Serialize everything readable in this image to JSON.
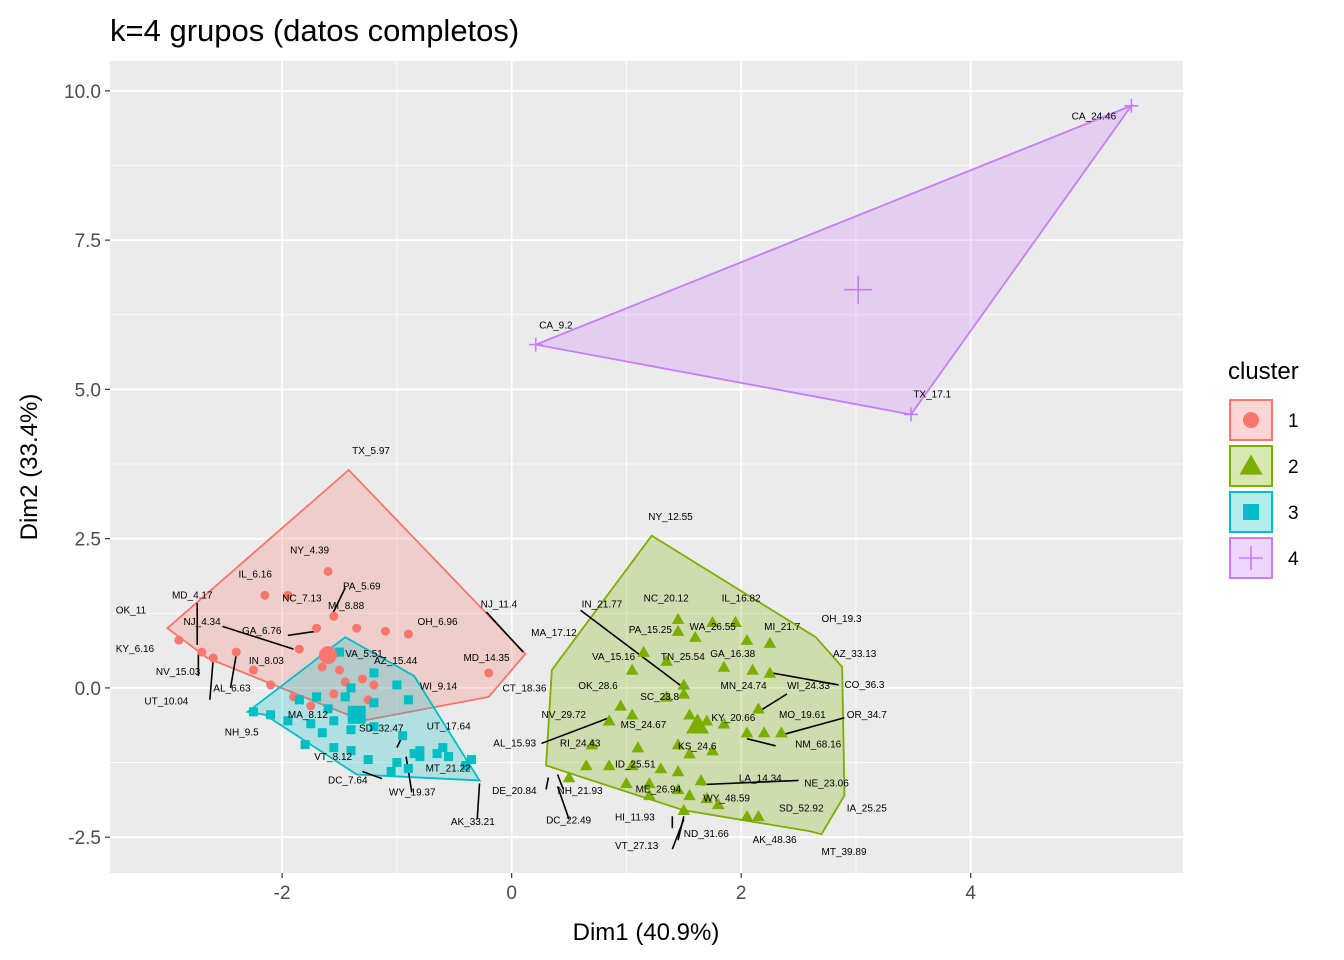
{
  "chart_data": {
    "type": "scatter",
    "title": "k=4 grupos (datos completos)",
    "xlabel": "Dim1 (40.9%)",
    "ylabel": "Dim2 (33.4%)",
    "xlim": [
      -3.5,
      5.85
    ],
    "ylim": [
      -3.1,
      10.5
    ],
    "x_ticks": [
      {
        "v": -2,
        "label": "-2"
      },
      {
        "v": 0,
        "label": "0"
      },
      {
        "v": 2,
        "label": "2"
      },
      {
        "v": 4,
        "label": "4"
      }
    ],
    "y_ticks": [
      {
        "v": -2.5,
        "label": "-2.5"
      },
      {
        "v": 0,
        "label": "0.0"
      },
      {
        "v": 2.5,
        "label": "2.5"
      },
      {
        "v": 5,
        "label": "5.0"
      },
      {
        "v": 7.5,
        "label": "7.5"
      },
      {
        "v": 10,
        "label": "10.0"
      }
    ],
    "grid": true,
    "legend": {
      "title": "cluster",
      "position": "right"
    },
    "clusters": [
      {
        "name": "1",
        "color": "#F8766D",
        "shape": "circle",
        "center": [
          -1.6,
          0.55
        ],
        "hull": [
          [
            -3.0,
            1.0
          ],
          [
            -1.42,
            3.65
          ],
          [
            0.12,
            0.57
          ],
          [
            -0.2,
            -0.15
          ],
          [
            -1.3,
            -0.55
          ],
          [
            -2.65,
            0.5
          ]
        ],
        "points": [
          [
            -2.9,
            0.8
          ],
          [
            -2.7,
            0.6
          ],
          [
            -2.6,
            0.5
          ],
          [
            -2.4,
            0.6
          ],
          [
            -1.6,
            1.95
          ],
          [
            -2.15,
            1.55
          ],
          [
            -1.55,
            1.2
          ],
          [
            -1.95,
            1.55
          ],
          [
            -1.35,
            1.0
          ],
          [
            -1.1,
            0.95
          ],
          [
            -0.9,
            0.9
          ],
          [
            -1.7,
            1.0
          ],
          [
            -1.85,
            0.65
          ],
          [
            -2.25,
            0.3
          ],
          [
            -2.1,
            0.05
          ],
          [
            -1.5,
            0.3
          ],
          [
            -1.3,
            0.15
          ],
          [
            -1.2,
            0.05
          ],
          [
            -0.2,
            0.25
          ],
          [
            -1.65,
            0.35
          ],
          [
            -1.45,
            0.1
          ],
          [
            -1.55,
            -0.1
          ],
          [
            -1.25,
            -0.2
          ],
          [
            -1.9,
            -0.15
          ],
          [
            -1.75,
            -0.3
          ]
        ]
      },
      {
        "name": "2",
        "color": "#7CAE00",
        "shape": "triangle",
        "center": [
          1.62,
          -0.62
        ],
        "hull": [
          [
            0.35,
            0.3
          ],
          [
            1.22,
            2.55
          ],
          [
            2.65,
            0.85
          ],
          [
            2.88,
            0.35
          ],
          [
            2.9,
            -1.8
          ],
          [
            2.7,
            -2.45
          ],
          [
            2.6,
            -2.4
          ],
          [
            1.5,
            -2.05
          ],
          [
            0.3,
            -1.3
          ]
        ],
        "points": [
          [
            1.45,
            1.15
          ],
          [
            1.75,
            1.1
          ],
          [
            1.95,
            1.1
          ],
          [
            1.45,
            0.95
          ],
          [
            1.6,
            0.85
          ],
          [
            2.05,
            0.8
          ],
          [
            2.25,
            0.75
          ],
          [
            1.15,
            0.6
          ],
          [
            1.35,
            0.45
          ],
          [
            1.85,
            0.35
          ],
          [
            1.05,
            0.3
          ],
          [
            2.1,
            0.3
          ],
          [
            2.25,
            0.25
          ],
          [
            1.5,
            0.05
          ],
          [
            1.35,
            -0.15
          ],
          [
            1.5,
            -0.1
          ],
          [
            2.15,
            -0.35
          ],
          [
            0.95,
            -0.3
          ],
          [
            1.05,
            -0.45
          ],
          [
            0.85,
            -0.55
          ],
          [
            1.55,
            -0.45
          ],
          [
            1.7,
            -0.55
          ],
          [
            1.85,
            -0.6
          ],
          [
            2.05,
            -0.75
          ],
          [
            2.2,
            -0.75
          ],
          [
            2.35,
            -0.75
          ],
          [
            0.7,
            -0.95
          ],
          [
            1.1,
            -1.0
          ],
          [
            1.45,
            -0.95
          ],
          [
            1.55,
            -1.1
          ],
          [
            1.75,
            -1.05
          ],
          [
            0.65,
            -1.3
          ],
          [
            0.85,
            -1.3
          ],
          [
            1.05,
            -1.3
          ],
          [
            1.3,
            -1.35
          ],
          [
            1.45,
            -1.4
          ],
          [
            1.65,
            -1.55
          ],
          [
            1.0,
            -1.6
          ],
          [
            1.2,
            -1.6
          ],
          [
            1.45,
            -1.7
          ],
          [
            1.55,
            -1.8
          ],
          [
            1.7,
            -1.85
          ],
          [
            1.8,
            -1.95
          ],
          [
            1.5,
            -2.05
          ],
          [
            2.05,
            -2.15
          ],
          [
            2.15,
            -2.15
          ],
          [
            0.5,
            -1.5
          ],
          [
            1.2,
            -1.8
          ]
        ]
      },
      {
        "name": "3",
        "color": "#00BFC4",
        "shape": "square",
        "center": [
          -1.35,
          -0.45
        ],
        "hull": [
          [
            -2.3,
            -0.4
          ],
          [
            -1.45,
            0.85
          ],
          [
            -0.85,
            0.2
          ],
          [
            -0.28,
            -1.55
          ],
          [
            -1.35,
            -1.45
          ],
          [
            -2.15,
            -0.45
          ]
        ],
        "points": [
          [
            -1.5,
            0.6
          ],
          [
            -1.2,
            0.25
          ],
          [
            -1.0,
            0.05
          ],
          [
            -1.4,
            0.0
          ],
          [
            -1.7,
            -0.15
          ],
          [
            -1.45,
            -0.15
          ],
          [
            -1.85,
            -0.2
          ],
          [
            -1.6,
            -0.35
          ],
          [
            -1.2,
            -0.25
          ],
          [
            -0.9,
            -0.2
          ],
          [
            -2.1,
            -0.45
          ],
          [
            -1.95,
            -0.55
          ],
          [
            -1.75,
            -0.6
          ],
          [
            -1.55,
            -0.55
          ],
          [
            -1.4,
            -0.7
          ],
          [
            -1.2,
            -0.65
          ],
          [
            -0.95,
            -0.8
          ],
          [
            -1.65,
            -0.75
          ],
          [
            -1.8,
            -0.95
          ],
          [
            -1.55,
            -1.0
          ],
          [
            -1.4,
            -1.05
          ],
          [
            -1.25,
            -1.2
          ],
          [
            -1.0,
            -1.25
          ],
          [
            -0.85,
            -1.1
          ],
          [
            -0.8,
            -1.05
          ],
          [
            -0.65,
            -1.1
          ],
          [
            -0.55,
            -1.15
          ],
          [
            -0.4,
            -1.3
          ],
          [
            -0.35,
            -1.2
          ],
          [
            -0.6,
            -1.0
          ],
          [
            -1.05,
            -1.4
          ],
          [
            -0.9,
            -1.35
          ],
          [
            -0.8,
            -1.15
          ],
          [
            -2.25,
            -0.4
          ]
        ]
      },
      {
        "name": "4",
        "color": "#C77CFF",
        "shape": "cross",
        "center": [
          3.02,
          6.67
        ],
        "hull": [
          [
            0.21,
            5.75
          ],
          [
            5.4,
            9.75
          ],
          [
            3.48,
            4.58
          ]
        ],
        "points": [
          [
            0.21,
            5.75
          ],
          [
            5.4,
            9.75
          ],
          [
            3.48,
            4.58
          ]
        ]
      }
    ],
    "labels": [
      {
        "text": "CA_24.46",
        "x": 4.88,
        "y": 9.52
      },
      {
        "text": "CA_9.2",
        "x": 0.24,
        "y": 6.02
      },
      {
        "text": "TX_17.1",
        "x": 3.5,
        "y": 4.86
      },
      {
        "text": "TX_5.97",
        "x": -1.39,
        "y": 3.92
      },
      {
        "text": "NY_4.39",
        "x": -1.93,
        "y": 2.25
      },
      {
        "text": "IL_6.16",
        "x": -2.38,
        "y": 1.85
      },
      {
        "text": "PA_5.69",
        "x": -1.47,
        "y": 1.65
      },
      {
        "text": "NC_7.13",
        "x": -2.0,
        "y": 1.45
      },
      {
        "text": "MD_4.17",
        "x": -2.96,
        "y": 1.5
      },
      {
        "text": "MI_8.88",
        "x": -1.6,
        "y": 1.32
      },
      {
        "text": "NJ_11.4",
        "x": -0.27,
        "y": 1.35
      },
      {
        "text": "OK_11",
        "x": -3.45,
        "y": 1.25
      },
      {
        "text": "NJ_4.34",
        "x": -2.86,
        "y": 1.05
      },
      {
        "text": "OH_6.96",
        "x": -0.82,
        "y": 1.05
      },
      {
        "text": "GA_6.76",
        "x": -2.35,
        "y": 0.9
      },
      {
        "text": "KY_6.16",
        "x": -3.45,
        "y": 0.6
      },
      {
        "text": "MD_14.35",
        "x": -0.42,
        "y": 0.45
      },
      {
        "text": "VA_5.51",
        "x": -1.45,
        "y": 0.52
      },
      {
        "text": "IN_8.03",
        "x": -2.29,
        "y": 0.4
      },
      {
        "text": "AZ_15.44",
        "x": -1.2,
        "y": 0.4
      },
      {
        "text": "NV_15.03",
        "x": -3.1,
        "y": 0.22
      },
      {
        "text": "AL_6.63",
        "x": -2.6,
        "y": -0.06
      },
      {
        "text": "WI_9.14",
        "x": -0.8,
        "y": -0.03
      },
      {
        "text": "CT_18.36",
        "x": -0.08,
        "y": -0.06
      },
      {
        "text": "UT_10.04",
        "x": -3.2,
        "y": -0.28
      },
      {
        "text": "MA_8.12",
        "x": -1.95,
        "y": -0.5
      },
      {
        "text": "SD_32.47",
        "x": -1.33,
        "y": -0.73
      },
      {
        "text": "UT_17.64",
        "x": -0.74,
        "y": -0.7
      },
      {
        "text": "NH_9.5",
        "x": -2.5,
        "y": -0.8
      },
      {
        "text": "VT_8.12",
        "x": -1.72,
        "y": -1.21
      },
      {
        "text": "MT_21.22",
        "x": -0.75,
        "y": -1.4
      },
      {
        "text": "DC_7.64",
        "x": -1.6,
        "y": -1.6
      },
      {
        "text": "WY_19.37",
        "x": -1.07,
        "y": -1.8
      },
      {
        "text": "AK_33.21",
        "x": -0.53,
        "y": -2.3
      },
      {
        "text": "NY_12.55",
        "x": 1.19,
        "y": 2.81
      },
      {
        "text": "NC_20.12",
        "x": 1.15,
        "y": 1.45
      },
      {
        "text": "IL_16.82",
        "x": 1.83,
        "y": 1.45
      },
      {
        "text": "IN_21.77",
        "x": 0.61,
        "y": 1.35
      },
      {
        "text": "OH_19.3",
        "x": 2.7,
        "y": 1.1
      },
      {
        "text": "WA_26.55",
        "x": 1.55,
        "y": 0.97
      },
      {
        "text": "MI_21.7",
        "x": 2.2,
        "y": 0.97
      },
      {
        "text": "MA_17.12",
        "x": 0.17,
        "y": 0.87
      },
      {
        "text": "PA_15.25",
        "x": 1.02,
        "y": 0.92
      },
      {
        "text": "GA_16.38",
        "x": 1.73,
        "y": 0.52
      },
      {
        "text": "AZ_33.13",
        "x": 2.8,
        "y": 0.52
      },
      {
        "text": "VA_15.16",
        "x": 0.7,
        "y": 0.47
      },
      {
        "text": "TN_25.54",
        "x": 1.3,
        "y": 0.47
      },
      {
        "text": "CO_36.3",
        "x": 2.9,
        "y": 0.0
      },
      {
        "text": "OK_28.6",
        "x": 0.58,
        "y": -0.02
      },
      {
        "text": "MN_24.74",
        "x": 1.82,
        "y": -0.02
      },
      {
        "text": "WI_24.33",
        "x": 2.4,
        "y": -0.02
      },
      {
        "text": "SC_23.8",
        "x": 1.12,
        "y": -0.2
      },
      {
        "text": "NV_29.72",
        "x": 0.26,
        "y": -0.5
      },
      {
        "text": "OR_34.7",
        "x": 2.92,
        "y": -0.5
      },
      {
        "text": "MO_19.61",
        "x": 2.33,
        "y": -0.5
      },
      {
        "text": "KY_20.66",
        "x": 1.74,
        "y": -0.55
      },
      {
        "text": "MS_24.67",
        "x": 0.95,
        "y": -0.67
      },
      {
        "text": "AL_15.93",
        "x": -0.16,
        "y": -0.98
      },
      {
        "text": "RI_24.43",
        "x": 0.42,
        "y": -0.98
      },
      {
        "text": "NM_68.16",
        "x": 2.47,
        "y": -1.0
      },
      {
        "text": "KS_24.6",
        "x": 1.45,
        "y": -1.03
      },
      {
        "text": "ID_25.51",
        "x": 0.9,
        "y": -1.33
      },
      {
        "text": "LA_14.34",
        "x": 1.98,
        "y": -1.57
      },
      {
        "text": "NE_23.06",
        "x": 2.55,
        "y": -1.65
      },
      {
        "text": "ME_26.94",
        "x": 1.08,
        "y": -1.75
      },
      {
        "text": "DE_20.84",
        "x": -0.17,
        "y": -1.78
      },
      {
        "text": "NH_21.93",
        "x": 0.4,
        "y": -1.78
      },
      {
        "text": "WY_48.59",
        "x": 1.67,
        "y": -1.9
      },
      {
        "text": "SD_52.92",
        "x": 2.33,
        "y": -2.07
      },
      {
        "text": "IA_25.25",
        "x": 2.92,
        "y": -2.07
      },
      {
        "text": "HI_11.93",
        "x": 0.9,
        "y": -2.22
      },
      {
        "text": "DC_22.49",
        "x": 0.3,
        "y": -2.27
      },
      {
        "text": "ND_31.66",
        "x": 1.5,
        "y": -2.5
      },
      {
        "text": "AK_48.36",
        "x": 2.1,
        "y": -2.6
      },
      {
        "text": "VT_27.13",
        "x": 0.9,
        "y": -2.7
      },
      {
        "text": "MT_39.89",
        "x": 2.7,
        "y": -2.8
      }
    ],
    "segments": [
      [
        -2.74,
        1.42,
        -2.74,
        0.72
      ],
      [
        -2.52,
        1.03,
        -1.9,
        0.65
      ],
      [
        -1.95,
        0.88,
        -1.7,
        0.95
      ],
      [
        -1.45,
        1.68,
        -1.57,
        1.2
      ],
      [
        -0.22,
        1.27,
        0.1,
        0.6
      ],
      [
        -2.63,
        -0.2,
        -2.6,
        0.5
      ],
      [
        -2.73,
        0.2,
        -2.73,
        0.6
      ],
      [
        -2.45,
        0.0,
        -2.4,
        0.55
      ],
      [
        -1.0,
        -1.0,
        -0.95,
        -0.8
      ],
      [
        -0.87,
        -1.75,
        -0.92,
        -1.15
      ],
      [
        -1.13,
        -1.52,
        -1.3,
        -1.4
      ],
      [
        -0.3,
        -2.2,
        -0.28,
        -1.6
      ],
      [
        0.6,
        1.3,
        1.5,
        0.0
      ],
      [
        0.26,
        -0.93,
        0.85,
        -0.5
      ],
      [
        2.27,
        0.25,
        2.85,
        0.05
      ],
      [
        2.15,
        -0.4,
        2.4,
        -0.1
      ],
      [
        2.33,
        -0.8,
        2.9,
        -0.5
      ],
      [
        2.3,
        -0.97,
        2.05,
        -0.85
      ],
      [
        1.65,
        -1.62,
        2.5,
        -1.55
      ],
      [
        0.32,
        -1.5,
        0.3,
        -1.7
      ],
      [
        0.4,
        -1.45,
        0.45,
        -1.7
      ],
      [
        0.4,
        -1.65,
        0.5,
        -2.2
      ],
      [
        1.4,
        -2.15,
        1.4,
        -2.35
      ],
      [
        1.45,
        -2.55,
        1.5,
        -2.15
      ],
      [
        1.4,
        -2.7,
        1.5,
        -2.2
      ]
    ]
  }
}
